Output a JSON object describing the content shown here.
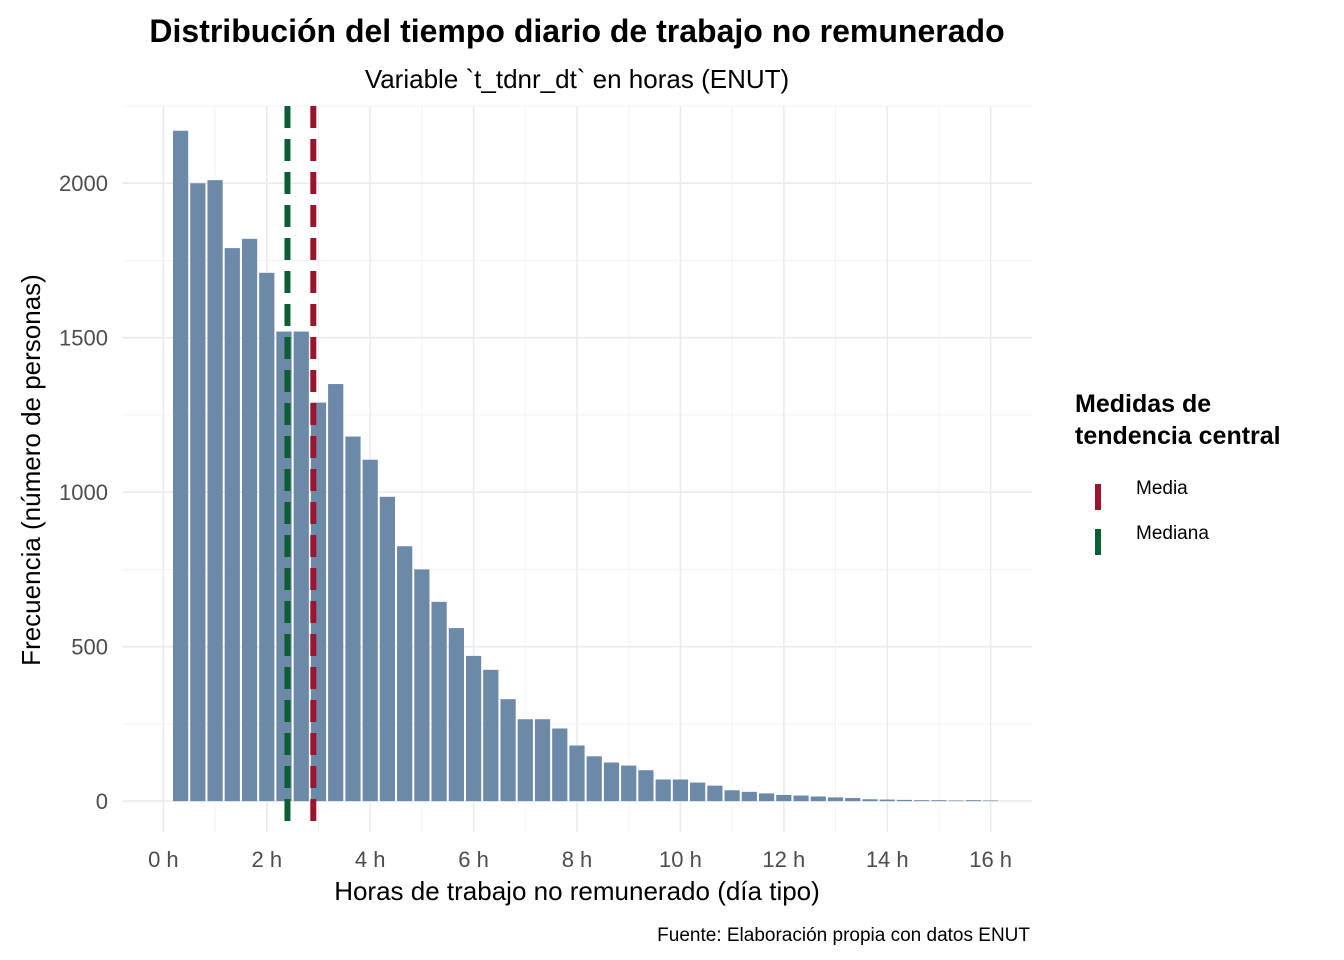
{
  "colors": {
    "bar_fill": "#6C89A8",
    "mean": "#9B1530",
    "median": "#0C5E35",
    "grid": "#EBEBEB",
    "tick_text": "#4D4D4D"
  },
  "chart_data": {
    "type": "bar",
    "title": "Distribución del tiempo diario de trabajo no remunerado",
    "subtitle": "Variable `t_tdnr_dt` en horas (ENUT)",
    "xlabel": "Horas de trabajo no remunerado (día tipo)",
    "ylabel": "Frecuencia (número de personas)",
    "caption": "Fuente: Elaboración propia con datos ENUT",
    "xlim": [
      -0.8,
      16.8
    ],
    "ylim": [
      -100,
      2250
    ],
    "x_ticks": [
      0,
      2,
      4,
      6,
      8,
      10,
      12,
      14,
      16
    ],
    "x_tick_labels": [
      "0 h",
      "2 h",
      "4 h",
      "6 h",
      "8 h",
      "10 h",
      "12 h",
      "14 h",
      "16 h"
    ],
    "y_ticks": [
      0,
      500,
      1000,
      1500,
      2000
    ],
    "y_tick_labels": [
      "0",
      "500",
      "1000",
      "1500",
      "2000"
    ],
    "bin_width": 0.333,
    "bin_centers": [
      0.333,
      0.667,
      1.0,
      1.333,
      1.667,
      2.0,
      2.333,
      2.667,
      3.0,
      3.333,
      3.667,
      4.0,
      4.333,
      4.667,
      5.0,
      5.333,
      5.667,
      6.0,
      6.333,
      6.667,
      7.0,
      7.333,
      7.667,
      8.0,
      8.333,
      8.667,
      9.0,
      9.333,
      9.667,
      10.0,
      10.333,
      10.667,
      11.0,
      11.333,
      11.667,
      12.0,
      12.333,
      12.667,
      13.0,
      13.333,
      13.667,
      14.0,
      14.333,
      14.667,
      15.0,
      15.333,
      15.667,
      16.0
    ],
    "values": [
      2170,
      2000,
      2010,
      1790,
      1820,
      1710,
      1520,
      1520,
      1290,
      1350,
      1180,
      1105,
      985,
      825,
      750,
      645,
      560,
      470,
      425,
      330,
      265,
      265,
      235,
      180,
      145,
      125,
      115,
      100,
      70,
      70,
      60,
      50,
      35,
      30,
      25,
      20,
      18,
      15,
      12,
      10,
      6,
      5,
      4,
      3,
      3,
      2,
      3,
      2
    ],
    "reference_lines": [
      {
        "name": "Media",
        "x": 2.9,
        "color": "#9B1530"
      },
      {
        "name": "Mediana",
        "x": 2.4,
        "color": "#0C5E35"
      }
    ],
    "legend": {
      "title_line1": "Medidas de",
      "title_line2": "tendencia central",
      "position": "right",
      "items": [
        "Media",
        "Mediana"
      ]
    },
    "grid": true
  }
}
